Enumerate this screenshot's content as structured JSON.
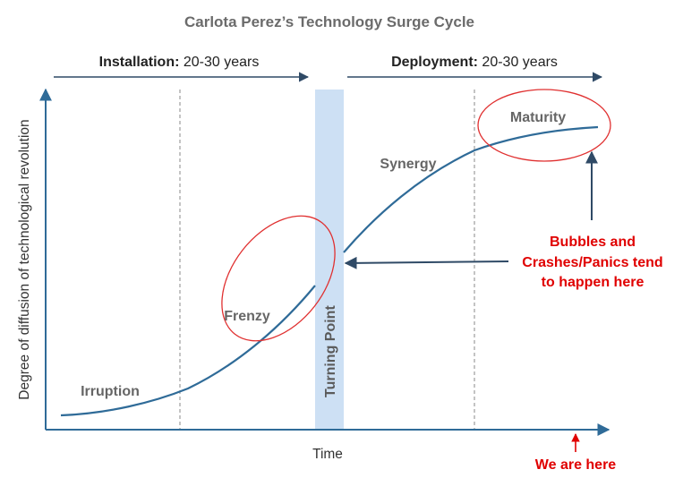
{
  "title": "Carlota Perez’s Technology Surge Cycle",
  "phases": {
    "installation": {
      "label": "Installation:",
      "duration": " 20-30 years"
    },
    "deployment": {
      "label": "Deployment:",
      "duration": " 20-30 years"
    }
  },
  "axes": {
    "ylabel": "Degree of diffusion of technological revolution",
    "xlabel": "Time"
  },
  "stages": {
    "irruption": "Irruption",
    "frenzy": "Frenzy",
    "turning_point": "Turning Point",
    "synergy": "Synergy",
    "maturity": "Maturity"
  },
  "callout": {
    "line1": "Bubbles and",
    "line2": "Crashes/Panics tend",
    "line3": "to happen here"
  },
  "marker": {
    "label": "We are here"
  },
  "colors": {
    "curve": "#2f6b98",
    "axis": "#2f6b98",
    "turning_band": "#cde0f4",
    "highlight": "#e03030",
    "text_red": "#e00000"
  }
}
